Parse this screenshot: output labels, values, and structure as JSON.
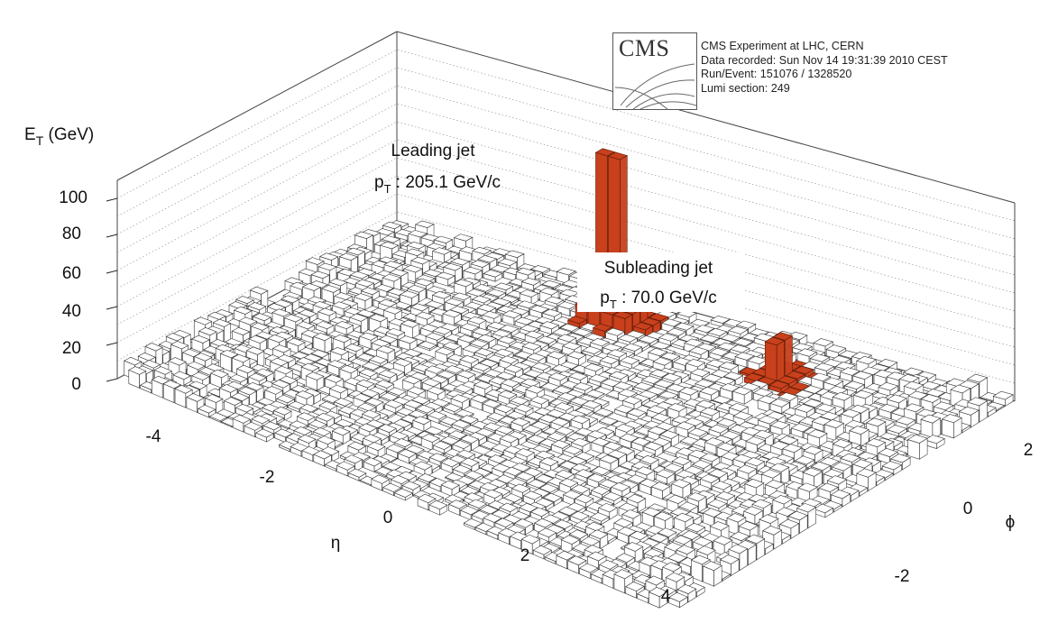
{
  "event_info": {
    "logo_text": "CMS",
    "lines": [
      "CMS Experiment at LHC, CERN",
      "Data recorded: Sun Nov 14 19:31:39 2010 CEST",
      "Run/Event: 151076 / 1328520",
      "Lumi section: 249"
    ]
  },
  "colors": {
    "jet_tower": "#c8401c",
    "jet_tower_edge": "#5a1a08",
    "background_tower": "#ffffff",
    "tower_edge": "#333333"
  },
  "chart_data": {
    "type": "lego",
    "z_axis": {
      "label_main": "E",
      "label_sub": "T",
      "label_unit": " (GeV)",
      "ticks": [
        "0",
        "20",
        "40",
        "60",
        "80",
        "100"
      ],
      "range": [
        0,
        110
      ]
    },
    "eta_axis": {
      "label": "η",
      "ticks": [
        "-4",
        "-2",
        "0",
        "2",
        "4"
      ],
      "range": [
        -5,
        5
      ]
    },
    "phi_axis": {
      "label": "ϕ",
      "ticks": [
        "-2",
        "0",
        "2"
      ],
      "range": [
        -3.14,
        3.14
      ]
    },
    "annotations": {
      "leading_title": "Leading jet",
      "leading_p": "p",
      "leading_sub": "T",
      "leading_value": " : 205.1 GeV/c",
      "subleading_title": "Subleading jet",
      "subleading_p": "p",
      "subleading_sub": "T",
      "subleading_value": " : 70.0 GeV/c"
    },
    "jets": [
      {
        "name": "Leading jet",
        "pt": 205.1,
        "eta": -0.85,
        "phi": 2.3,
        "peak_et": 95
      },
      {
        "name": "Subleading jet",
        "pt": 70.0,
        "eta": 2.0,
        "phi": 2.2,
        "peak_et": 22
      }
    ],
    "background_et_max": 7
  }
}
